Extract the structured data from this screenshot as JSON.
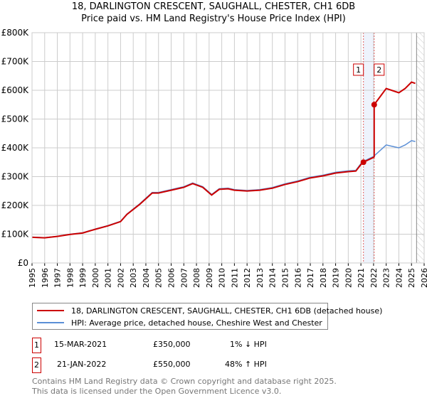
{
  "chart_data": {
    "type": "line",
    "title": "18, DARLINGTON CRESCENT, SAUGHALL, CHESTER, CH1 6DB",
    "subtitle": "Price paid vs. HM Land Registry's House Price Index (HPI)",
    "ylim": [
      0,
      800000
    ],
    "xlim": [
      1995,
      2026
    ],
    "y_ticks": [
      {
        "v": 0,
        "l": "£0"
      },
      {
        "v": 100000,
        "l": "£100K"
      },
      {
        "v": 200000,
        "l": "£200K"
      },
      {
        "v": 300000,
        "l": "£300K"
      },
      {
        "v": 400000,
        "l": "£400K"
      },
      {
        "v": 500000,
        "l": "£500K"
      },
      {
        "v": 600000,
        "l": "£600K"
      },
      {
        "v": 700000,
        "l": "£700K"
      },
      {
        "v": 800000,
        "l": "£800K"
      }
    ],
    "x_ticks": [
      "1995",
      "1996",
      "1997",
      "1998",
      "1999",
      "2000",
      "2001",
      "2002",
      "2003",
      "2004",
      "2005",
      "2006",
      "2007",
      "2008",
      "2009",
      "2010",
      "2011",
      "2012",
      "2013",
      "2014",
      "2015",
      "2016",
      "2017",
      "2018",
      "2019",
      "2020",
      "2021",
      "2022",
      "2023",
      "2024",
      "2025",
      "2026"
    ],
    "grid": true,
    "hpi": {
      "name": "HPI: Average price, detached house, Cheshire West and Chester",
      "color": "#5b8fd6",
      "x": [
        1995,
        1996,
        1997,
        1998,
        1999,
        2000,
        2001,
        2002,
        2002.5,
        2003.5,
        2004.5,
        2005,
        2006,
        2007,
        2007.7,
        2008.5,
        2009.2,
        2009.8,
        2010.5,
        2011,
        2012,
        2013,
        2014,
        2015,
        2016,
        2017,
        2018,
        2019,
        2020,
        2020.6,
        2021,
        2021.2,
        2022,
        2022.5,
        2023,
        2023.5,
        2024,
        2024.5,
        2025,
        2025.3
      ],
      "y": [
        90000,
        88000,
        93000,
        100000,
        105000,
        118000,
        130000,
        145000,
        170000,
        205000,
        245000,
        245000,
        255000,
        265000,
        278000,
        265000,
        238000,
        258000,
        260000,
        255000,
        252000,
        255000,
        262000,
        275000,
        285000,
        298000,
        305000,
        315000,
        320000,
        322000,
        345000,
        353000,
        370000,
        390000,
        410000,
        405000,
        400000,
        410000,
        425000,
        422000
      ]
    },
    "property": {
      "name": "18, DARLINGTON CRESCENT, SAUGHALL, CHESTER, CH1 6DB (detached house)",
      "color": "#cc0000"
    },
    "sales": [
      {
        "id": "1",
        "x": 2021.2,
        "y": 350000,
        "date": "15-MAR-2021",
        "price": "£350,000",
        "hpi": "1% ↓ HPI"
      },
      {
        "id": "2",
        "x": 2022.05,
        "y": 550000,
        "date": "21-JAN-2022",
        "price": "£550,000",
        "hpi": "48% ↑ HPI"
      }
    ],
    "forecast_start": 2025.4
  },
  "footer": {
    "line1": "Contains HM Land Registry data © Crown copyright and database right 2025.",
    "line2": "This data is licensed under the Open Government Licence v3.0."
  }
}
